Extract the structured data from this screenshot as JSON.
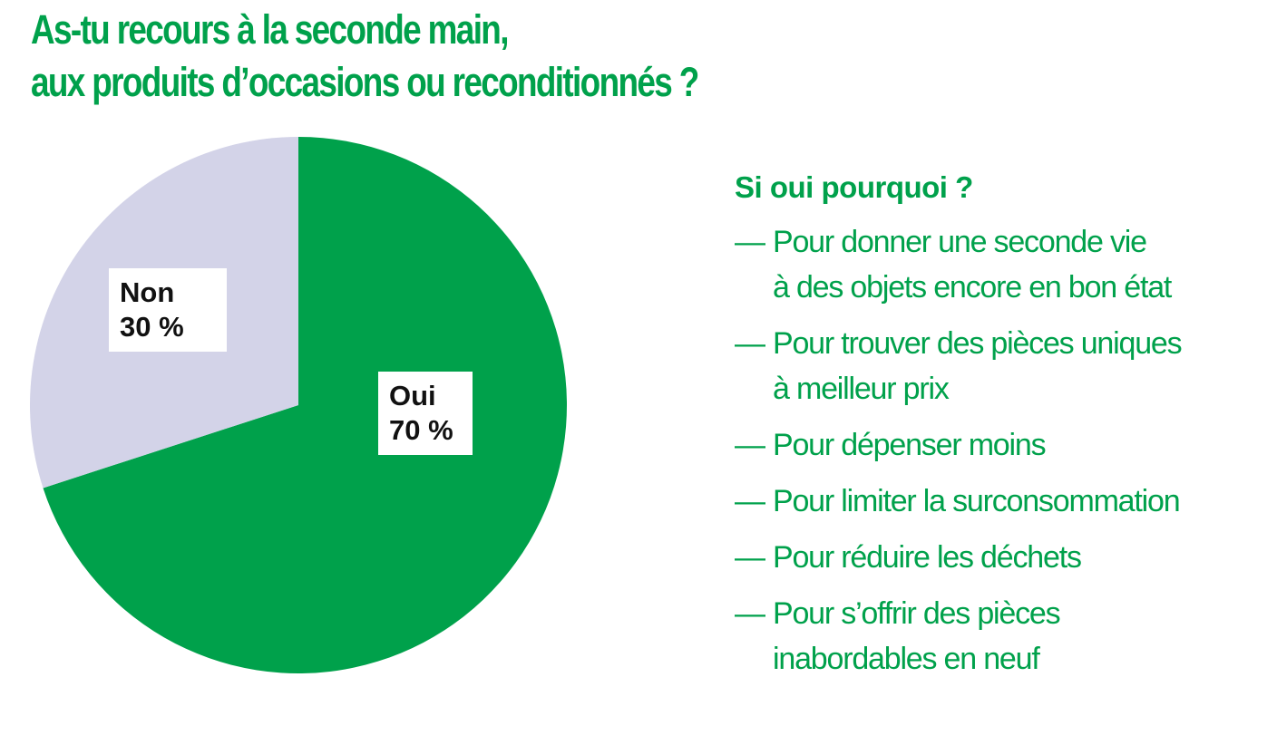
{
  "title_lines": [
    "As-tu recours à la seconde main,",
    "aux produits d’occasions ou reconditionnés ?"
  ],
  "colors": {
    "accent": "#00a14b",
    "oui_slice": "#00a14b",
    "non_slice": "#d3d3e8",
    "label_text": "#111111",
    "label_bg": "#ffffff"
  },
  "chart_data": {
    "type": "pie",
    "title": "As-tu recours à la seconde main, aux produits d’occasions ou reconditionnés ?",
    "slices": [
      {
        "label": "Oui",
        "value": 70,
        "value_text": "70 %",
        "color": "#00a14b"
      },
      {
        "label": "Non",
        "value": 30,
        "value_text": "30 %",
        "color": "#d3d3e8"
      }
    ],
    "start_angle": "12 o'clock",
    "direction": "clockwise"
  },
  "reasons": {
    "heading": "Si oui pourquoi ?",
    "dash": "—",
    "items": [
      {
        "lines": [
          "Pour donner une seconde vie",
          "à des objets encore en bon état"
        ]
      },
      {
        "lines": [
          "Pour trouver des pièces uniques",
          "à meilleur prix"
        ]
      },
      {
        "lines": [
          "Pour dépenser moins"
        ]
      },
      {
        "lines": [
          "Pour limiter la surconsommation"
        ]
      },
      {
        "lines": [
          "Pour réduire les déchets"
        ]
      },
      {
        "lines": [
          "Pour s’offrir des pièces",
          "inabordables en neuf"
        ]
      }
    ]
  }
}
